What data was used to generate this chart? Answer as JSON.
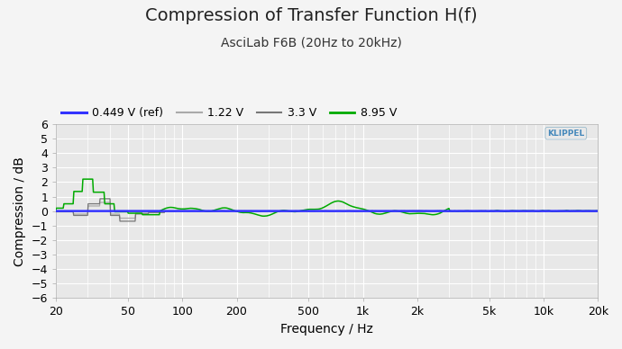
{
  "title": "Compression of Transfer Function H(f)",
  "subtitle": "AsciLab F6B (20Hz to 20kHz)",
  "xlabel": "Frequency / Hz",
  "ylabel": "Compression / dB",
  "xlim_log": [
    20,
    20000
  ],
  "ylim": [
    -6,
    6
  ],
  "yticks": [
    -6,
    -5,
    -4,
    -3,
    -2,
    -1,
    0,
    1,
    2,
    3,
    4,
    5,
    6
  ],
  "xtick_positions": [
    20,
    50,
    100,
    200,
    500,
    1000,
    2000,
    5000,
    10000,
    20000
  ],
  "xtick_labels": [
    "20",
    "50",
    "100",
    "200",
    "500",
    "1k",
    "2k",
    "5k",
    "10k",
    "20k"
  ],
  "legend_labels": [
    "0.449 V (ref)",
    "1.22 V",
    "3.3 V",
    "8.95 V"
  ],
  "line_colors": [
    "#3333ff",
    "#aaaaaa",
    "#777777",
    "#00aa00"
  ],
  "bg_color": "#f4f4f4",
  "plot_bg_color": "#e8e8e8",
  "grid_color": "#ffffff",
  "title_fontsize": 14,
  "subtitle_fontsize": 10,
  "label_fontsize": 10,
  "tick_fontsize": 9,
  "legend_fontsize": 9
}
